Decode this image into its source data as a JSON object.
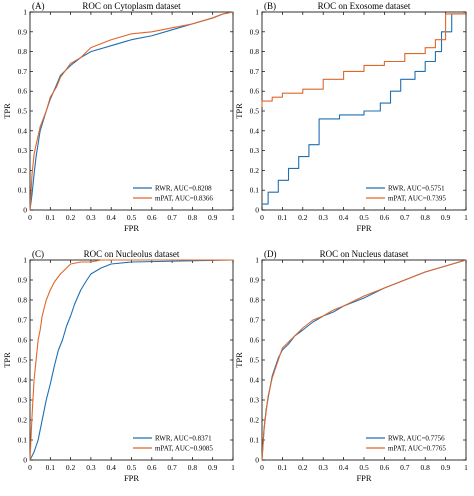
{
  "colors": {
    "rwr": "#1f6fb2",
    "mpat": "#e0672a",
    "axis": "#000000"
  },
  "chart_data": [
    {
      "type": "line",
      "panel_label": "(A)",
      "title": "ROC on Cytoplasm dataset",
      "xlabel": "FPR",
      "ylabel": "TPR",
      "xlim": [
        0,
        1
      ],
      "ylim": [
        0,
        1
      ],
      "xticks": [
        "0",
        "0.1",
        "0.2",
        "0.3",
        "0.4",
        "0.5",
        "0.6",
        "0.7",
        "0.8",
        "0.9",
        "1"
      ],
      "yticks": [
        "0",
        "0.1",
        "0.2",
        "0.3",
        "0.4",
        "0.5",
        "0.6",
        "0.7",
        "0.8",
        "0.9",
        "1"
      ],
      "legend_position": "bottom-right",
      "grid": false,
      "series": [
        {
          "name": "RWR, AUC=0.8208",
          "color": "#1f6fb2",
          "x": [
            0,
            0.01,
            0.02,
            0.03,
            0.05,
            0.08,
            0.1,
            0.13,
            0.15,
            0.2,
            0.25,
            0.3,
            0.4,
            0.5,
            0.6,
            0.7,
            0.8,
            0.9,
            0.95,
            1
          ],
          "y": [
            0,
            0.08,
            0.18,
            0.27,
            0.4,
            0.5,
            0.56,
            0.63,
            0.68,
            0.73,
            0.77,
            0.8,
            0.83,
            0.86,
            0.88,
            0.91,
            0.94,
            0.97,
            0.99,
            1
          ]
        },
        {
          "name": "mPAT, AUC=0.8366",
          "color": "#e0672a",
          "x": [
            0,
            0.01,
            0.02,
            0.03,
            0.05,
            0.08,
            0.1,
            0.13,
            0.15,
            0.2,
            0.25,
            0.3,
            0.4,
            0.5,
            0.6,
            0.7,
            0.8,
            0.9,
            0.95,
            1
          ],
          "y": [
            0,
            0.18,
            0.28,
            0.33,
            0.42,
            0.5,
            0.57,
            0.62,
            0.67,
            0.74,
            0.77,
            0.82,
            0.86,
            0.89,
            0.9,
            0.92,
            0.94,
            0.97,
            0.99,
            1
          ]
        }
      ]
    },
    {
      "type": "line",
      "panel_label": "(B)",
      "title": "ROC on Exosome dataset",
      "xlabel": "FPR",
      "ylabel": "TPR",
      "xlim": [
        0,
        1
      ],
      "ylim": [
        0,
        1
      ],
      "xticks": [
        "0",
        "0.1",
        "0.2",
        "0.3",
        "0.4",
        "0.5",
        "0.6",
        "0.7",
        "0.8",
        "0.9",
        "1"
      ],
      "yticks": [
        "0",
        "0.1",
        "0.2",
        "0.3",
        "0.4",
        "0.5",
        "0.6",
        "0.7",
        "0.8",
        "0.9",
        "1"
      ],
      "legend_position": "bottom-right",
      "grid": false,
      "series": [
        {
          "name": "RWR, AUC=0.5751",
          "color": "#1f6fb2",
          "x": [
            0,
            0.03,
            0.03,
            0.08,
            0.08,
            0.13,
            0.13,
            0.18,
            0.18,
            0.23,
            0.23,
            0.28,
            0.28,
            0.38,
            0.38,
            0.5,
            0.5,
            0.58,
            0.58,
            0.63,
            0.63,
            0.68,
            0.68,
            0.75,
            0.75,
            0.8,
            0.8,
            0.85,
            0.85,
            0.88,
            0.88,
            0.93,
            0.93,
            1
          ],
          "y": [
            0.03,
            0.03,
            0.09,
            0.09,
            0.15,
            0.15,
            0.21,
            0.21,
            0.27,
            0.27,
            0.33,
            0.33,
            0.46,
            0.46,
            0.48,
            0.48,
            0.5,
            0.5,
            0.54,
            0.54,
            0.6,
            0.6,
            0.66,
            0.66,
            0.7,
            0.7,
            0.75,
            0.75,
            0.8,
            0.8,
            0.9,
            0.9,
            0.99,
            0.99
          ]
        },
        {
          "name": "mPAT, AUC=0.7395",
          "color": "#e0672a",
          "x": [
            0,
            0,
            0.05,
            0.05,
            0.1,
            0.1,
            0.2,
            0.2,
            0.3,
            0.3,
            0.4,
            0.4,
            0.5,
            0.5,
            0.6,
            0.6,
            0.7,
            0.7,
            0.8,
            0.8,
            0.85,
            0.85,
            0.9,
            0.9,
            1
          ],
          "y": [
            0.52,
            0.55,
            0.55,
            0.57,
            0.57,
            0.59,
            0.59,
            0.61,
            0.61,
            0.66,
            0.66,
            0.7,
            0.7,
            0.73,
            0.73,
            0.75,
            0.75,
            0.79,
            0.79,
            0.82,
            0.82,
            0.86,
            0.86,
            0.99,
            0.99
          ]
        }
      ]
    },
    {
      "type": "line",
      "panel_label": "(C)",
      "title": "ROC on Nucleolus dataset",
      "xlabel": "FPR",
      "ylabel": "TPR",
      "xlim": [
        0,
        1
      ],
      "ylim": [
        0,
        1
      ],
      "xticks": [
        "0",
        "0.1",
        "0.2",
        "0.3",
        "0.4",
        "0.5",
        "0.6",
        "0.7",
        "0.8",
        "0.9",
        "1"
      ],
      "yticks": [
        "0",
        "0.1",
        "0.2",
        "0.3",
        "0.4",
        "0.5",
        "0.6",
        "0.7",
        "0.8",
        "0.9",
        "1"
      ],
      "legend_position": "bottom-right",
      "grid": false,
      "series": [
        {
          "name": "RWR, AUC=0.8371",
          "color": "#1f6fb2",
          "x": [
            0,
            0.02,
            0.04,
            0.06,
            0.08,
            0.1,
            0.12,
            0.14,
            0.16,
            0.18,
            0.2,
            0.22,
            0.25,
            0.28,
            0.3,
            0.35,
            0.4,
            0.5,
            1
          ],
          "y": [
            0,
            0.04,
            0.1,
            0.2,
            0.3,
            0.38,
            0.47,
            0.55,
            0.6,
            0.67,
            0.72,
            0.78,
            0.85,
            0.9,
            0.93,
            0.96,
            0.98,
            0.99,
            1
          ]
        },
        {
          "name": "mPAT, AUC=0.9085",
          "color": "#e0672a",
          "x": [
            0,
            0.01,
            0.02,
            0.03,
            0.04,
            0.05,
            0.06,
            0.08,
            0.1,
            0.12,
            0.15,
            0.18,
            0.2,
            0.25,
            0.3,
            0.35,
            0.5,
            1
          ],
          "y": [
            0,
            0.22,
            0.4,
            0.5,
            0.6,
            0.65,
            0.72,
            0.8,
            0.85,
            0.89,
            0.93,
            0.96,
            0.98,
            0.99,
            0.99,
            1,
            1,
            1
          ]
        }
      ]
    },
    {
      "type": "line",
      "panel_label": "(D)",
      "title": "ROC on Nucleus dataset",
      "xlabel": "FPR",
      "ylabel": "TPR",
      "xlim": [
        0,
        1
      ],
      "ylim": [
        0,
        1
      ],
      "xticks": [
        "0",
        "0.1",
        "0.2",
        "0.3",
        "0.4",
        "0.5",
        "0.6",
        "0.7",
        "0.8",
        "0.9",
        "1"
      ],
      "yticks": [
        "0",
        "0.1",
        "0.2",
        "0.3",
        "0.4",
        "0.5",
        "0.6",
        "0.7",
        "0.8",
        "0.9",
        "1"
      ],
      "legend_position": "bottom-right",
      "grid": false,
      "series": [
        {
          "name": "RWR, AUC=0.7756",
          "color": "#1f6fb2",
          "x": [
            0,
            0.01,
            0.02,
            0.03,
            0.05,
            0.08,
            0.1,
            0.13,
            0.16,
            0.2,
            0.25,
            0.3,
            0.35,
            0.4,
            0.5,
            0.6,
            0.7,
            0.8,
            0.9,
            1
          ],
          "y": [
            0,
            0.15,
            0.25,
            0.31,
            0.42,
            0.51,
            0.55,
            0.58,
            0.62,
            0.65,
            0.69,
            0.72,
            0.74,
            0.77,
            0.81,
            0.86,
            0.9,
            0.94,
            0.97,
            1
          ]
        },
        {
          "name": "mPAT, AUC=0.7765",
          "color": "#e0672a",
          "x": [
            0,
            0.01,
            0.02,
            0.03,
            0.05,
            0.08,
            0.1,
            0.13,
            0.16,
            0.2,
            0.25,
            0.3,
            0.35,
            0.4,
            0.5,
            0.6,
            0.7,
            0.8,
            0.9,
            1
          ],
          "y": [
            0,
            0.16,
            0.24,
            0.32,
            0.41,
            0.5,
            0.56,
            0.59,
            0.62,
            0.66,
            0.7,
            0.72,
            0.75,
            0.77,
            0.82,
            0.86,
            0.9,
            0.94,
            0.97,
            1
          ]
        }
      ]
    }
  ]
}
